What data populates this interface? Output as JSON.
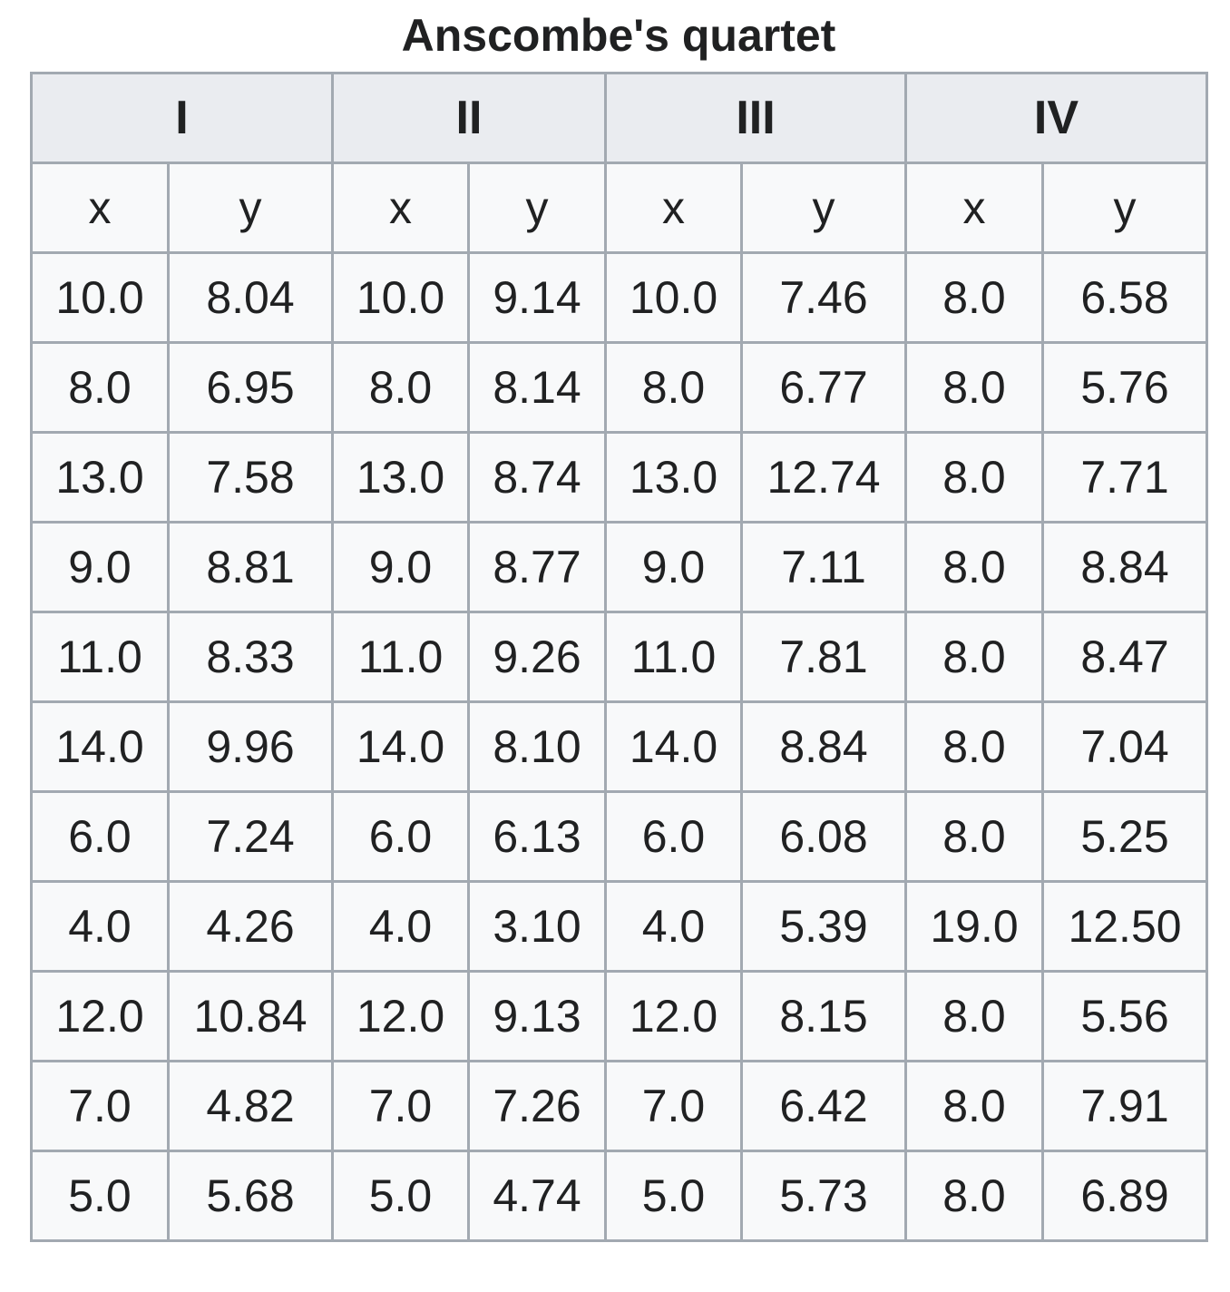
{
  "title": "Anscombe's quartet",
  "groups": [
    "I",
    "II",
    "III",
    "IV"
  ],
  "axis_labels": [
    "x",
    "y",
    "x",
    "y",
    "x",
    "y",
    "x",
    "y"
  ],
  "rows": [
    [
      "10.0",
      "8.04",
      "10.0",
      "9.14",
      "10.0",
      "7.46",
      "8.0",
      "6.58"
    ],
    [
      "8.0",
      "6.95",
      "8.0",
      "8.14",
      "8.0",
      "6.77",
      "8.0",
      "5.76"
    ],
    [
      "13.0",
      "7.58",
      "13.0",
      "8.74",
      "13.0",
      "12.74",
      "8.0",
      "7.71"
    ],
    [
      "9.0",
      "8.81",
      "9.0",
      "8.77",
      "9.0",
      "7.11",
      "8.0",
      "8.84"
    ],
    [
      "11.0",
      "8.33",
      "11.0",
      "9.26",
      "11.0",
      "7.81",
      "8.0",
      "8.47"
    ],
    [
      "14.0",
      "9.96",
      "14.0",
      "8.10",
      "14.0",
      "8.84",
      "8.0",
      "7.04"
    ],
    [
      "6.0",
      "7.24",
      "6.0",
      "6.13",
      "6.0",
      "6.08",
      "8.0",
      "5.25"
    ],
    [
      "4.0",
      "4.26",
      "4.0",
      "3.10",
      "4.0",
      "5.39",
      "19.0",
      "12.50"
    ],
    [
      "12.0",
      "10.84",
      "12.0",
      "9.13",
      "12.0",
      "8.15",
      "8.0",
      "5.56"
    ],
    [
      "7.0",
      "4.82",
      "7.0",
      "7.26",
      "7.0",
      "6.42",
      "8.0",
      "7.91"
    ],
    [
      "5.0",
      "5.68",
      "5.0",
      "4.74",
      "5.0",
      "5.73",
      "8.0",
      "6.89"
    ]
  ],
  "colors": {
    "header_bg": "#eaecf0",
    "cell_bg": "#f8f9fa",
    "border": "#a2a9b1",
    "text": "#202122"
  }
}
